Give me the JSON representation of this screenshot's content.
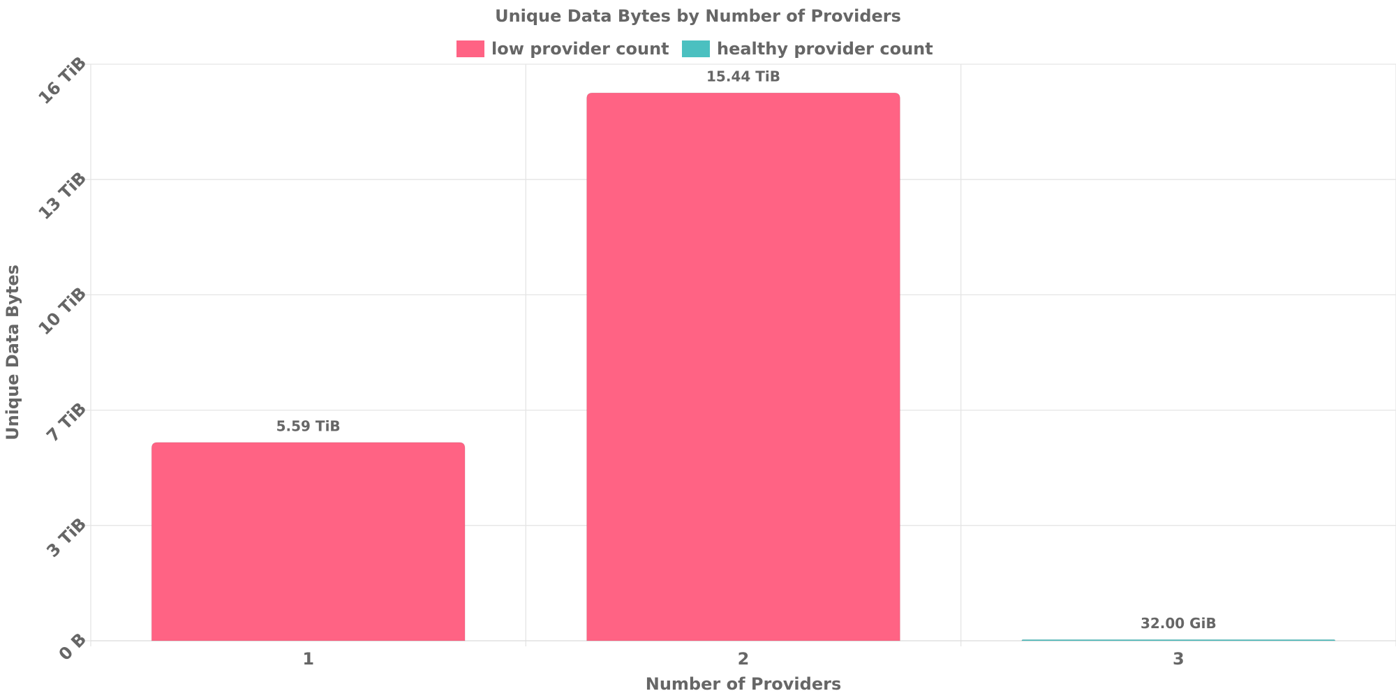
{
  "chart_data": {
    "type": "bar",
    "title": "Unique Data Bytes by Number of Providers",
    "x_label": "Number of Providers",
    "y_label": "Unique Data Bytes",
    "categories": [
      "1",
      "2",
      "3"
    ],
    "series": [
      {
        "name": "low provider count",
        "color": "#ff6384",
        "values": [
          5.59,
          15.44,
          null
        ],
        "value_labels": [
          "5.59 TiB",
          "15.44 TiB",
          null
        ]
      },
      {
        "name": "healthy provider count",
        "color": "#4bc0c0",
        "values": [
          null,
          null,
          0.03125
        ],
        "value_labels": [
          null,
          null,
          "32.00 GiB"
        ]
      }
    ],
    "ylim": [
      0,
      16.25
    ],
    "yticks": [
      {
        "value": 0,
        "label": "0 B"
      },
      {
        "value": 3.25,
        "label": "3 TiB"
      },
      {
        "value": 6.5,
        "label": "7 TiB"
      },
      {
        "value": 9.75,
        "label": "10 TiB"
      },
      {
        "value": 13,
        "label": "13 TiB"
      },
      {
        "value": 16.25,
        "label": "16 TiB"
      }
    ],
    "grid": true,
    "legend": "top"
  }
}
